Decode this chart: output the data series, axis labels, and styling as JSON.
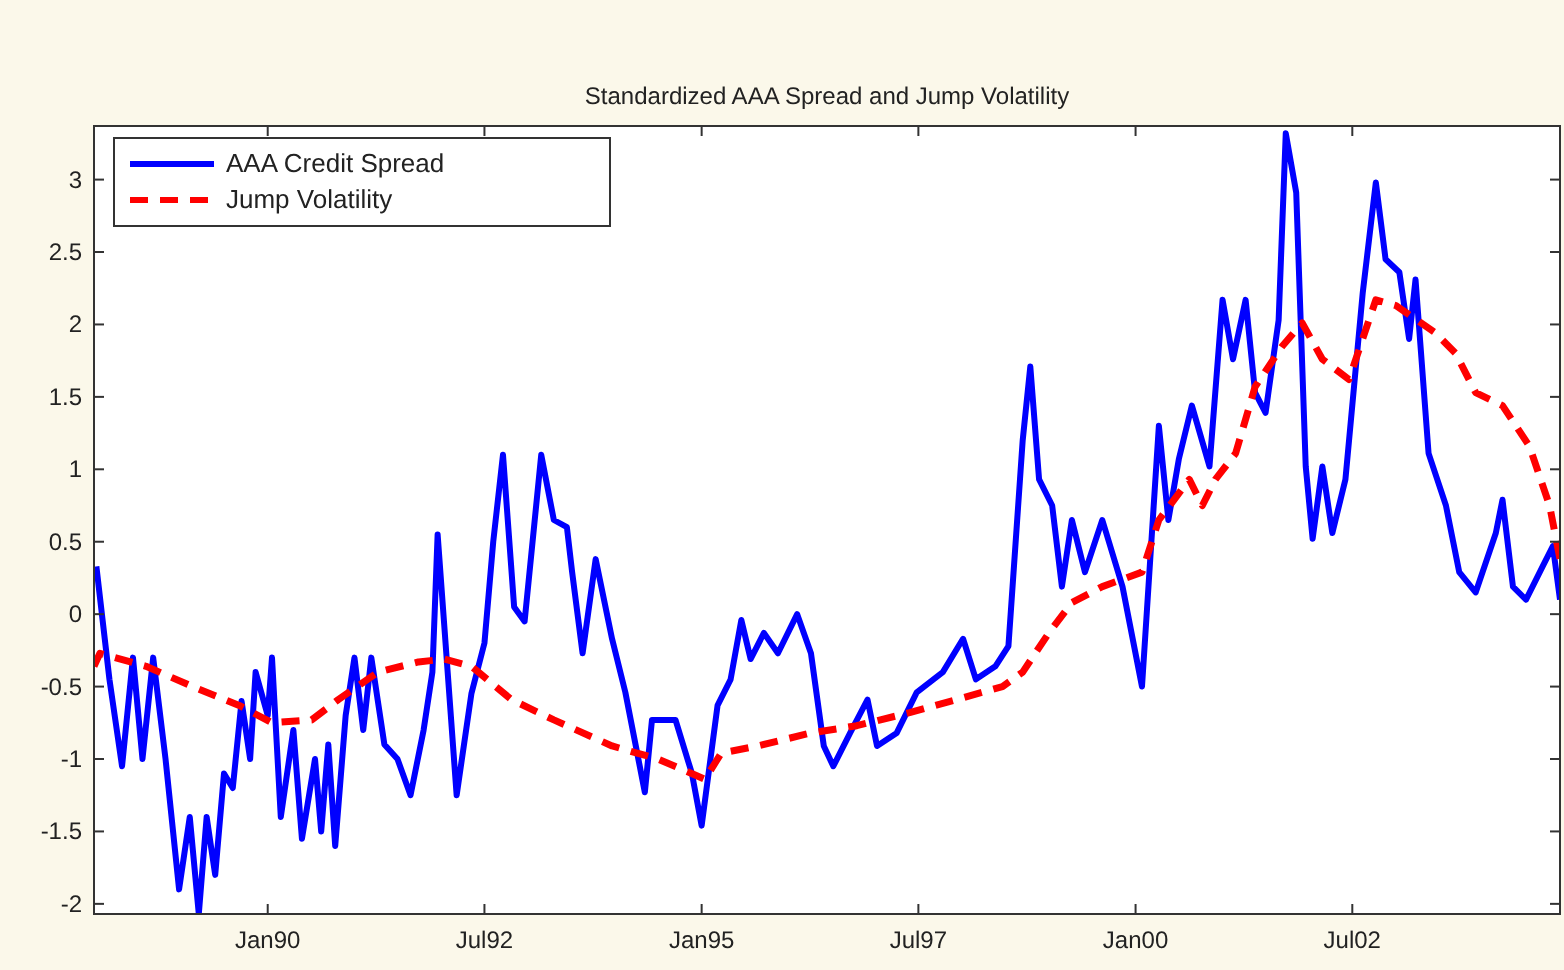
{
  "chart_data": {
    "type": "line",
    "title": "Standardized AAA Spread and Jump Volatility",
    "xlim": [
      "1988-01-01",
      "2004-11-21"
    ],
    "ylim": [
      -2.07,
      3.37
    ],
    "xticks": [
      {
        "value": "1990-01-01",
        "label": "Jan90"
      },
      {
        "value": "1992-07-01",
        "label": "Jul92"
      },
      {
        "value": "1995-01-01",
        "label": "Jan95"
      },
      {
        "value": "1997-07-01",
        "label": "Jul97"
      },
      {
        "value": "2000-01-01",
        "label": "Jan00"
      },
      {
        "value": "2002-07-01",
        "label": "Jul02"
      }
    ],
    "yticks": [
      -2,
      -1.5,
      -1,
      -0.5,
      0,
      0.5,
      1,
      1.5,
      2,
      2.5,
      3
    ],
    "legend": "top left",
    "grid": false,
    "series": [
      {
        "name": "AAA Credit Spread",
        "color": "#0000ff",
        "line_style": "solid",
        "x": [
          "1988-01-11",
          "1988-03-06",
          "1988-04-28",
          "1988-06-13",
          "1988-07-23",
          "1988-09-06",
          "1988-10-28",
          "1988-12-24",
          "1989-02-07",
          "1989-03-17",
          "1989-04-19",
          "1989-05-25",
          "1989-07-01",
          "1989-08-07",
          "1989-09-13",
          "1989-10-19",
          "1989-11-11",
          "1990-01-01",
          "1990-01-19",
          "1990-02-25",
          "1990-04-19",
          "1990-05-25",
          "1990-07-19",
          "1990-08-14",
          "1990-09-13",
          "1990-10-12",
          "1990-11-25",
          "1991-01-01",
          "1991-02-07",
          "1991-03-13",
          "1991-05-07",
          "1991-07-01",
          "1991-08-25",
          "1991-10-19",
          "1991-11-25",
          "1991-12-17",
          "1992-03-06",
          "1992-05-07",
          "1992-07-01",
          "1992-08-07",
          "1992-09-17",
          "1992-11-03",
          "1992-12-17",
          "1993-02-25",
          "1993-04-19",
          "1993-06-13",
          "1993-07-05",
          "1993-08-18",
          "1993-10-12",
          "1993-12-20",
          "1994-02-14",
          "1994-05-07",
          "1994-06-06",
          "1994-09-13",
          "1994-11-21",
          "1995-01-01",
          "1995-03-09",
          "1995-05-03",
          "1995-06-17",
          "1995-07-26",
          "1995-09-20",
          "1995-11-18",
          "1996-02-07",
          "1996-04-05",
          "1996-05-29",
          "1996-07-08",
          "1996-09-17",
          "1996-11-29",
          "1997-01-08",
          "1997-04-01",
          "1997-06-24",
          "1997-10-12",
          "1998-01-05",
          "1998-02-28",
          "1998-05-21",
          "1998-07-15",
          "1998-09-13",
          "1998-10-15",
          "1998-11-21",
          "1999-01-15",
          "1999-02-25",
          "1999-04-08",
          "1999-06-02",
          "1999-08-14",
          "1999-11-07",
          "2000-01-28",
          "2000-04-08",
          "2000-05-18",
          "2000-07-01",
          "2000-08-25",
          "2000-11-07",
          "2001-01-01",
          "2001-02-14",
          "2001-04-08",
          "2001-05-18",
          "2001-07-01",
          "2001-08-25",
          "2001-09-24",
          "2001-11-07",
          "2001-12-17",
          "2002-01-15",
          "2002-02-25",
          "2002-04-08",
          "2002-06-02",
          "2002-08-14",
          "2002-10-08",
          "2002-11-18",
          "2003-01-15",
          "2003-02-25",
          "2003-03-24",
          "2003-05-18",
          "2003-07-30",
          "2003-09-24",
          "2003-12-02",
          "2004-02-25",
          "2004-03-24",
          "2004-05-07",
          "2004-07-01",
          "2004-09-09",
          "2004-10-22",
          "2004-11-21"
        ],
        "values": [
          0.33,
          -0.45,
          -1.05,
          -0.3,
          -1.0,
          -0.3,
          -1.0,
          -1.9,
          -1.4,
          -2.07,
          -1.4,
          -1.8,
          -1.1,
          -1.2,
          -0.6,
          -1.0,
          -0.4,
          -0.7,
          -0.3,
          -1.4,
          -0.8,
          -1.55,
          -1.0,
          -1.5,
          -0.9,
          -1.6,
          -0.7,
          -0.3,
          -0.8,
          -0.3,
          -0.9,
          -1.0,
          -1.25,
          -0.8,
          -0.4,
          0.55,
          -1.25,
          -0.55,
          -0.2,
          0.5,
          1.1,
          0.05,
          -0.05,
          1.1,
          0.65,
          0.6,
          0.29,
          -0.27,
          0.38,
          -0.17,
          -0.54,
          -1.23,
          -0.73,
          -0.73,
          -1.1,
          -1.46,
          -0.63,
          -0.45,
          -0.04,
          -0.31,
          -0.13,
          -0.27,
          0.0,
          -0.27,
          -0.91,
          -1.05,
          -0.82,
          -0.59,
          -0.91,
          -0.82,
          -0.54,
          -0.4,
          -0.17,
          -0.45,
          -0.36,
          -0.22,
          1.2,
          1.71,
          0.93,
          0.75,
          0.19,
          0.65,
          0.29,
          0.65,
          0.19,
          -0.5,
          1.3,
          0.65,
          1.07,
          1.44,
          1.02,
          2.17,
          1.76,
          2.17,
          1.53,
          1.39,
          2.03,
          3.32,
          2.91,
          1.02,
          0.52,
          1.02,
          0.56,
          0.93,
          2.22,
          2.98,
          2.45,
          2.36,
          1.9,
          2.31,
          1.11,
          0.75,
          0.29,
          0.15,
          0.56,
          0.79,
          0.19,
          0.1,
          0.33,
          0.47,
          0.1
        ]
      },
      {
        "name": "Jump Volatility",
        "color": "#ff0000",
        "line_style": "dashed",
        "x": [
          "1988-01-01",
          "1988-01-26",
          "1988-08-07",
          "1989-02-19",
          "1989-09-03",
          "1990-01-19",
          "1990-07-05",
          "1990-10-25",
          "1991-04-11",
          "1991-09-27",
          "1992-01-15",
          "1992-05-07",
          "1992-10-23",
          "1993-04-19",
          "1993-12-20",
          "1994-07-01",
          "1995-01-15",
          "1995-03-24",
          "1995-08-25",
          "1996-04-05",
          "1996-10-15",
          "1997-05-25",
          "1997-12-08",
          "1998-06-20",
          "1998-09-13",
          "1999-01-01",
          "1999-04-08",
          "1999-08-14",
          "2000-01-28",
          "2000-04-08",
          "2000-08-14",
          "2000-10-08",
          "2000-12-02",
          "2001-02-25",
          "2001-05-18",
          "2001-09-09",
          "2001-12-02",
          "2002-02-25",
          "2002-06-17",
          "2002-10-08",
          "2003-01-01",
          "2003-06-17",
          "2003-09-09",
          "2003-12-02",
          "2004-03-24",
          "2004-07-15",
          "2004-10-08",
          "2004-11-21"
        ],
        "values": [
          -0.36,
          -0.27,
          -0.36,
          -0.5,
          -0.63,
          -0.75,
          -0.73,
          -0.59,
          -0.4,
          -0.33,
          -0.31,
          -0.36,
          -0.59,
          -0.73,
          -0.91,
          -1.0,
          -1.14,
          -0.96,
          -0.91,
          -0.82,
          -0.77,
          -0.68,
          -0.59,
          -0.5,
          -0.4,
          -0.13,
          0.08,
          0.19,
          0.29,
          0.65,
          0.93,
          0.75,
          0.93,
          1.11,
          1.57,
          1.85,
          2.01,
          1.76,
          1.62,
          2.17,
          2.13,
          1.94,
          1.8,
          1.53,
          1.44,
          1.16,
          0.75,
          0.38
        ]
      }
    ]
  }
}
